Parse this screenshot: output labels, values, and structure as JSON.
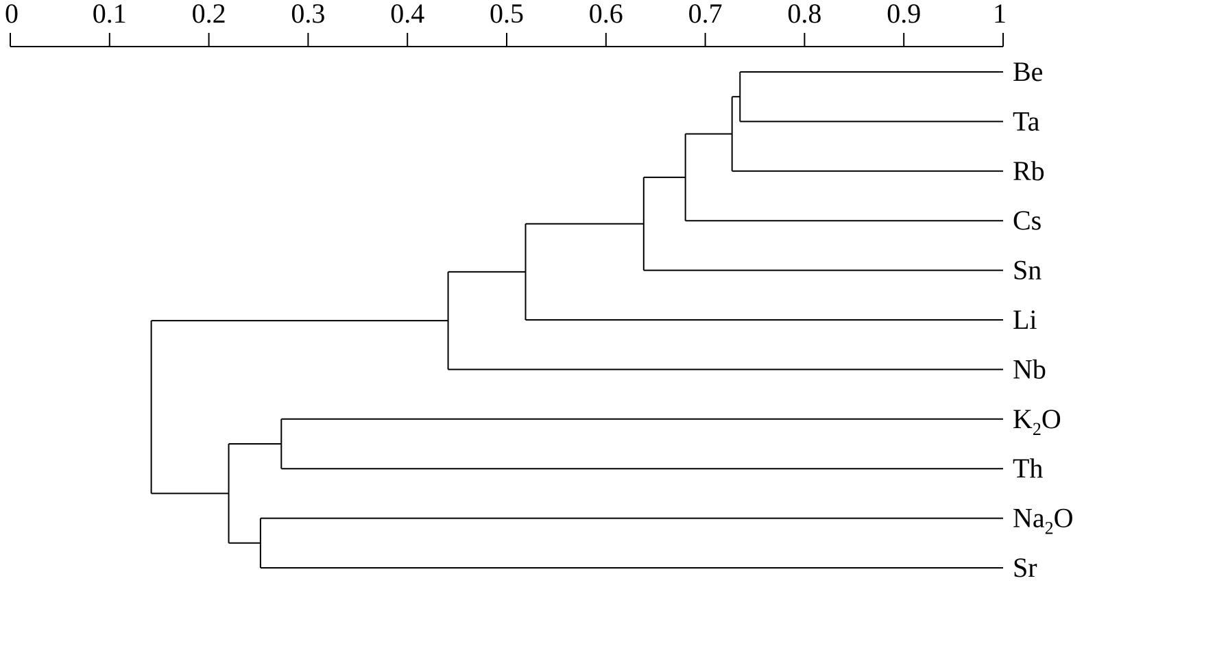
{
  "chart_data": {
    "type": "dendrogram",
    "title": "",
    "xlabel": "",
    "ylabel": "",
    "axis": {
      "position": "top",
      "xlim": [
        0,
        1
      ],
      "ticks": [
        0,
        0.1,
        0.2,
        0.3,
        0.4,
        0.5,
        0.6,
        0.7,
        0.8,
        0.9,
        1
      ],
      "tick_labels": [
        "0",
        "0.1",
        "0.2",
        "0.3",
        "0.4",
        "0.5",
        "0.6",
        "0.7",
        "0.8",
        "0.9",
        "1"
      ]
    },
    "grid": false,
    "line_color": "#000000",
    "leaves": [
      {
        "label": "Be",
        "sub": "",
        "tail": ""
      },
      {
        "label": "Ta",
        "sub": "",
        "tail": ""
      },
      {
        "label": "Rb",
        "sub": "",
        "tail": ""
      },
      {
        "label": "Cs",
        "sub": "",
        "tail": ""
      },
      {
        "label": "Sn",
        "sub": "",
        "tail": ""
      },
      {
        "label": "Li",
        "sub": "",
        "tail": ""
      },
      {
        "label": "Nb",
        "sub": "",
        "tail": ""
      },
      {
        "label": "K",
        "sub": "2",
        "tail": "O"
      },
      {
        "label": "Th",
        "sub": "",
        "tail": ""
      },
      {
        "label": "Na",
        "sub": "2",
        "tail": "O"
      },
      {
        "label": "Sr",
        "sub": "",
        "tail": ""
      }
    ],
    "merges": [
      {
        "id": "m1",
        "children": [
          "Be",
          "Ta"
        ],
        "similarity": 0.735
      },
      {
        "id": "m2",
        "children": [
          "m1",
          "Rb"
        ],
        "similarity": 0.727
      },
      {
        "id": "m3",
        "children": [
          "m2",
          "Cs"
        ],
        "similarity": 0.68
      },
      {
        "id": "m4",
        "children": [
          "m3",
          "Sn"
        ],
        "similarity": 0.638
      },
      {
        "id": "m5",
        "children": [
          "m4",
          "Li"
        ],
        "similarity": 0.519
      },
      {
        "id": "m6",
        "children": [
          "m5",
          "Nb"
        ],
        "similarity": 0.441
      },
      {
        "id": "m7",
        "children": [
          "K2O",
          "Th"
        ],
        "similarity": 0.273
      },
      {
        "id": "m8",
        "children": [
          "Na2O",
          "Sr"
        ],
        "similarity": 0.252
      },
      {
        "id": "m9",
        "children": [
          "m7",
          "m8"
        ],
        "similarity": 0.22
      },
      {
        "id": "m10",
        "children": [
          "m6",
          "m9"
        ],
        "similarity": 0.142
      }
    ]
  }
}
